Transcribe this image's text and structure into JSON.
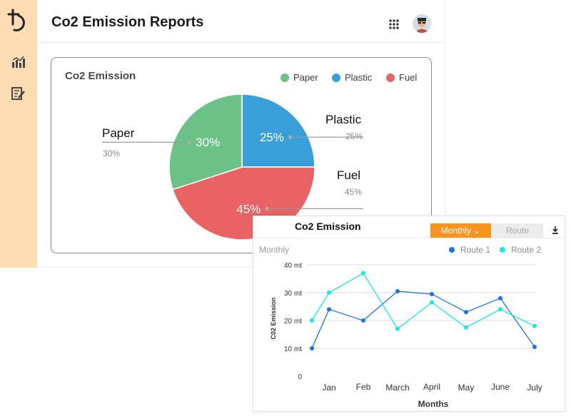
{
  "header": {
    "title": "Co2 Emission Reports"
  },
  "pie_card": {
    "title": "Co2 Emission",
    "legend": [
      {
        "label": "Paper",
        "color": "#6cc186"
      },
      {
        "label": "Plastic",
        "color": "#389fd8"
      },
      {
        "label": "Fuel",
        "color": "#e96365"
      }
    ]
  },
  "line_card": {
    "title": "Co2 Emission",
    "tabs": {
      "monthly": "Monthly",
      "route": "Route"
    },
    "subtitle": "Monthly"
  },
  "chart_data": [
    {
      "type": "pie",
      "title": "Co2 Emission",
      "slices": [
        {
          "label": "Plastic",
          "value": 25,
          "pct_label": "25%",
          "color": "#389fd8"
        },
        {
          "label": "Fuel",
          "value": 45,
          "pct_label": "45%",
          "color": "#e96365"
        },
        {
          "label": "Paper",
          "value": 30,
          "pct_label": "30%",
          "color": "#6cc186"
        }
      ],
      "legend_position": "top-right"
    },
    {
      "type": "line",
      "title": "Co2 Emission",
      "xlabel": "Months",
      "ylabel": "C02 Emission",
      "categories": [
        "Jan",
        "Feb",
        "March",
        "April",
        "May",
        "June",
        "July"
      ],
      "yticks": [
        "0",
        "10 mt",
        "20 mt",
        "30 mt",
        "40 mt"
      ],
      "ylim": [
        0,
        40
      ],
      "series": [
        {
          "name": "Route 1",
          "color": "#1a73e8",
          "x": [
            0.5,
            1,
            2,
            3,
            4,
            5,
            6,
            7
          ],
          "values": [
            10,
            24,
            20,
            30.5,
            29.5,
            23,
            28,
            10.5
          ]
        },
        {
          "name": "Route 2",
          "color": "#19e6f2",
          "x": [
            0.5,
            1,
            2,
            3,
            4,
            5,
            6,
            7
          ],
          "values": [
            20,
            30,
            37,
            17,
            26.5,
            17.5,
            24,
            18
          ]
        }
      ],
      "grid": true,
      "legend_position": "top-right"
    }
  ]
}
